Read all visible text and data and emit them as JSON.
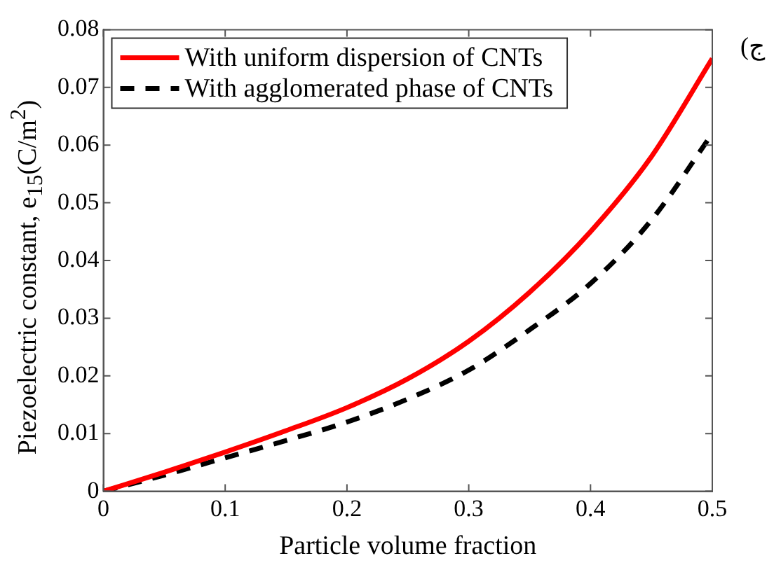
{
  "chart_data": {
    "type": "line",
    "xlabel": "Particle volume fraction",
    "ylabel": "Piezoelectric constant, e$_{15}$(C/m$^{2}$)",
    "annotations": [
      "(ج"
    ],
    "x": [
      0,
      0.05,
      0.1,
      0.15,
      0.2,
      0.25,
      0.3,
      0.35,
      0.4,
      0.45,
      0.5
    ],
    "series": [
      {
        "name": "With uniform dispersion of CNTs",
        "color": "#ff0000",
        "line_style": "solid",
        "values": [
          0,
          0.0033,
          0.0068,
          0.0105,
          0.0145,
          0.0195,
          0.026,
          0.0345,
          0.045,
          0.058,
          0.075
        ]
      },
      {
        "name": "With agglomerated phase of CNTs",
        "color": "#000000",
        "line_style": "dashed",
        "values": [
          0,
          0.0028,
          0.0058,
          0.0088,
          0.012,
          0.016,
          0.021,
          0.028,
          0.036,
          0.047,
          0.062
        ]
      }
    ],
    "xlim": [
      0,
      0.5
    ],
    "xticks": [
      0,
      0.1,
      0.2,
      0.3,
      0.4,
      0.5
    ],
    "ylim": [
      0,
      0.08
    ],
    "yticks": [
      0,
      0.01,
      0.02,
      0.03,
      0.04,
      0.05,
      0.06,
      0.07,
      0.08
    ],
    "grid": false,
    "legend": "top left",
    "marker": "none"
  }
}
